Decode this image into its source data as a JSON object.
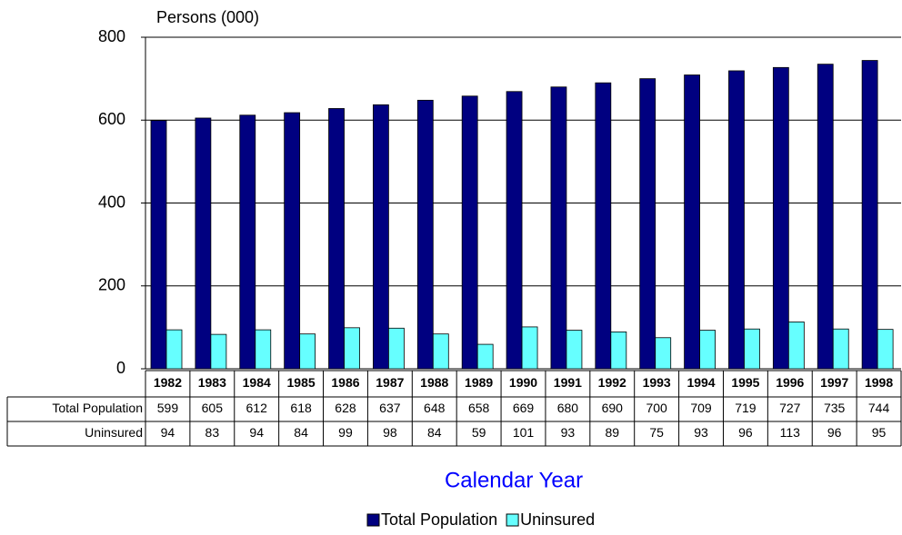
{
  "chart_data": {
    "type": "bar",
    "y_label": "Persons (000)",
    "x_label": "Calendar Year",
    "categories": [
      "1982",
      "1983",
      "1984",
      "1985",
      "1986",
      "1987",
      "1988",
      "1989",
      "1990",
      "1991",
      "1992",
      "1993",
      "1994",
      "1995",
      "1996",
      "1997",
      "1998"
    ],
    "series": [
      {
        "name": "Total Population",
        "color": "#000080",
        "values": [
          599,
          605,
          612,
          618,
          628,
          637,
          648,
          658,
          669,
          680,
          690,
          700,
          709,
          719,
          727,
          735,
          744
        ]
      },
      {
        "name": "Uninsured",
        "color": "#66ffff",
        "values": [
          94,
          83,
          94,
          84,
          99,
          98,
          84,
          59,
          101,
          93,
          89,
          75,
          93,
          96,
          113,
          96,
          95
        ]
      }
    ],
    "ylim": [
      0,
      800
    ],
    "yticks": [
      0,
      200,
      400,
      600,
      800
    ],
    "grid": true
  }
}
